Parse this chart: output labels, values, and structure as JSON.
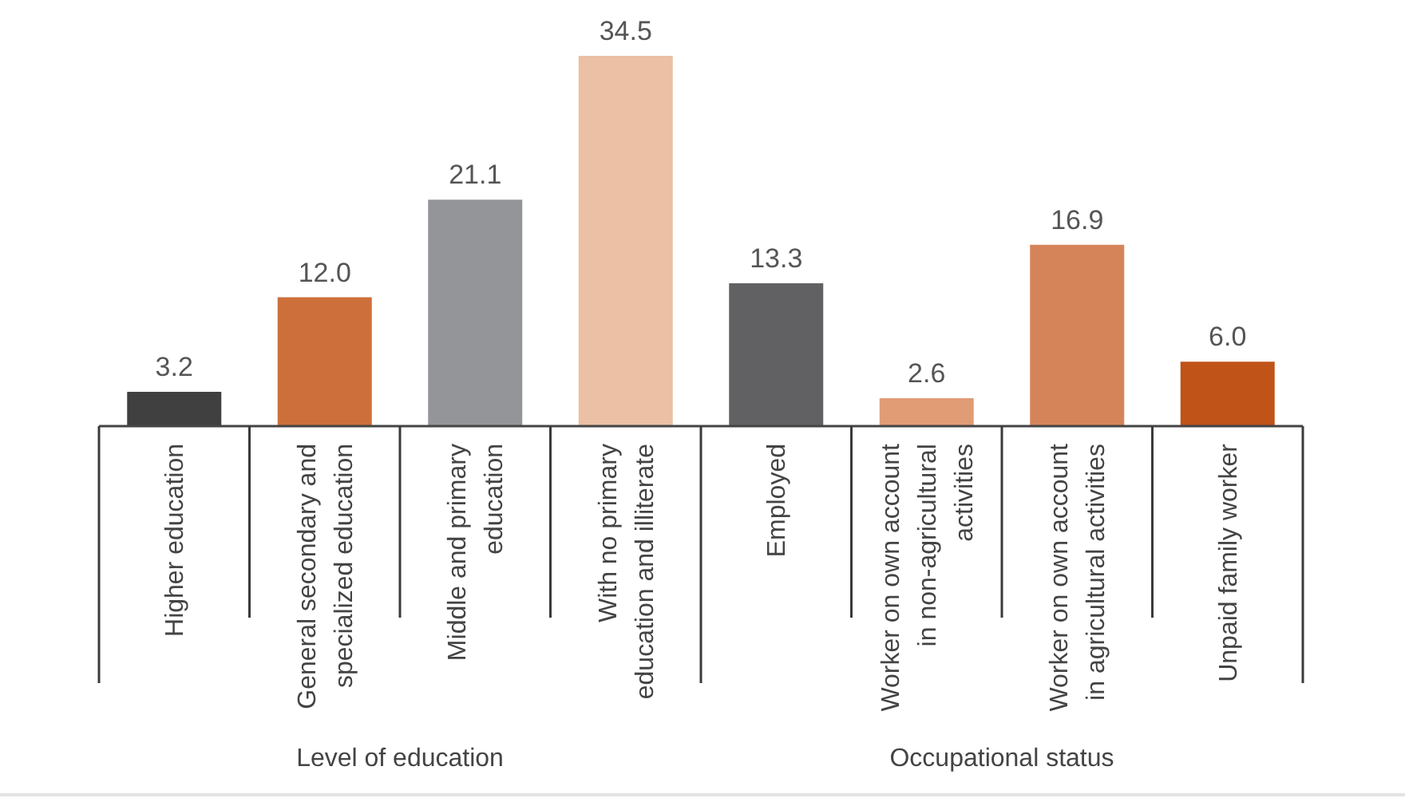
{
  "chart_data": {
    "type": "bar",
    "categories": [
      "Higher education",
      "General secondary and specialized education",
      "Middle and primary education",
      "With no primary education and illiterate",
      "Employed",
      "Worker on own account in non-agricultural activities",
      "Worker on own account in agricultural activities",
      "Unpaid family worker"
    ],
    "values": [
      3.2,
      12.0,
      21.1,
      34.5,
      13.3,
      2.6,
      16.9,
      6.0
    ],
    "colors": [
      "#404040",
      "#cd6f3b",
      "#949599",
      "#ebc0a4",
      "#616163",
      "#e19c76",
      "#d5845a",
      "#c05318"
    ],
    "value_labels": [
      "3.2",
      "12.0",
      "21.1",
      "34.5",
      "13.3",
      "2.6",
      "16.9",
      "6.0"
    ],
    "annotations": [
      "Level of education",
      "Occupational status"
    ]
  }
}
